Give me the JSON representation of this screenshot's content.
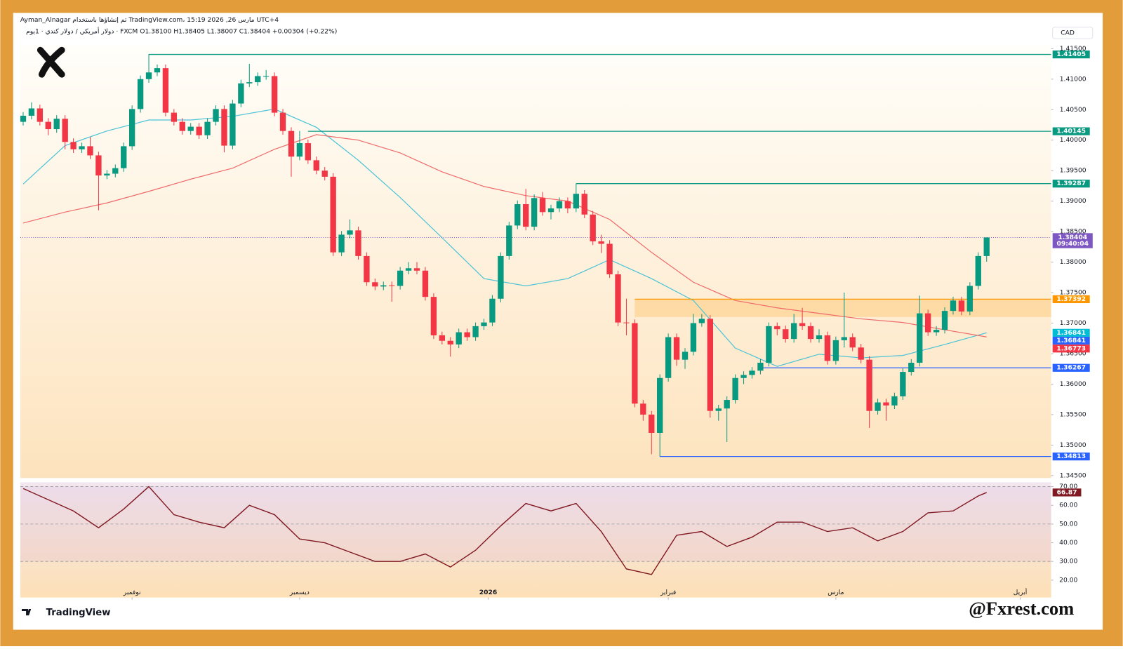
{
  "header": {
    "line1": "Ayman_Alnagar تم إنشاؤها باستخدام TradingView.com، مارس 26, 2026 15:19 UTC+4",
    "line2": "دولار أمريكي / دولار كندي · 1يوم · FXCM  O1.38100  H1.38405  L1.38007  C1.38404  +0.00304 (+0.22%)"
  },
  "chart_data": {
    "type": "candlestick",
    "currency": "CAD",
    "up_color": "#089981",
    "down_color": "#f23645",
    "candles": [
      [
        1.403,
        1.4046,
        1.4024,
        1.404
      ],
      [
        1.404,
        1.4062,
        1.4034,
        1.4052
      ],
      [
        1.4052,
        1.4058,
        1.4024,
        1.403
      ],
      [
        1.403,
        1.4036,
        1.4008,
        1.4018
      ],
      [
        1.4018,
        1.4041,
        1.4012,
        1.4035
      ],
      [
        1.4035,
        1.4041,
        1.3985,
        1.3997
      ],
      [
        1.3997,
        1.4003,
        1.3979,
        1.3985
      ],
      [
        1.3985,
        1.3996,
        1.3979,
        1.399
      ],
      [
        1.399,
        1.4005,
        1.3969,
        1.3975
      ],
      [
        1.3975,
        1.3981,
        1.3885,
        1.3942
      ],
      [
        1.3942,
        1.3951,
        1.3936,
        1.3945
      ],
      [
        1.3945,
        1.396,
        1.3939,
        1.3954
      ],
      [
        1.3954,
        1.3996,
        1.3948,
        1.399
      ],
      [
        1.399,
        1.4057,
        1.3984,
        1.4051
      ],
      [
        1.4051,
        1.4106,
        1.4045,
        1.41
      ],
      [
        1.41,
        1.4141,
        1.4094,
        1.4111
      ],
      [
        1.4111,
        1.4124,
        1.4105,
        1.4118
      ],
      [
        1.4118,
        1.4124,
        1.4039,
        1.4045
      ],
      [
        1.4045,
        1.4051,
        1.4024,
        1.403
      ],
      [
        1.403,
        1.4036,
        1.4009,
        1.4015
      ],
      [
        1.4015,
        1.4028,
        1.4009,
        1.4022
      ],
      [
        1.4022,
        1.4028,
        1.4002,
        1.4008
      ],
      [
        1.4008,
        1.4036,
        1.4002,
        1.403
      ],
      [
        1.403,
        1.4057,
        1.4024,
        1.4051
      ],
      [
        1.4051,
        1.4057,
        1.398,
        1.3991
      ],
      [
        1.3991,
        1.4066,
        1.3985,
        1.406
      ],
      [
        1.406,
        1.4099,
        1.4054,
        1.4093
      ],
      [
        1.4093,
        1.4125,
        1.4087,
        1.4095
      ],
      [
        1.4095,
        1.4111,
        1.4089,
        1.4105
      ],
      [
        1.4105,
        1.4115,
        1.4099,
        1.4105
      ],
      [
        1.4105,
        1.4111,
        1.4039,
        1.4045
      ],
      [
        1.4045,
        1.4051,
        1.4009,
        1.4015
      ],
      [
        1.4015,
        1.4021,
        1.394,
        1.3973
      ],
      [
        1.3973,
        1.4015,
        1.3967,
        1.3995
      ],
      [
        1.3995,
        1.4001,
        1.3961,
        1.3967
      ],
      [
        1.3967,
        1.3973,
        1.3944,
        1.395
      ],
      [
        1.395,
        1.3956,
        1.3934,
        1.394
      ],
      [
        1.394,
        1.3946,
        1.381,
        1.3816
      ],
      [
        1.3816,
        1.3851,
        1.381,
        1.3845
      ],
      [
        1.3845,
        1.387,
        1.3839,
        1.3852
      ],
      [
        1.3852,
        1.3858,
        1.3804,
        1.381
      ],
      [
        1.381,
        1.3816,
        1.3761,
        1.3767
      ],
      [
        1.3767,
        1.3773,
        1.3754,
        1.376
      ],
      [
        1.376,
        1.3768,
        1.3754,
        1.3762
      ],
      [
        1.3762,
        1.3768,
        1.3735,
        1.3761
      ],
      [
        1.3761,
        1.3792,
        1.3755,
        1.3786
      ],
      [
        1.3786,
        1.38,
        1.378,
        1.379
      ],
      [
        1.379,
        1.38,
        1.378,
        1.3786
      ],
      [
        1.3786,
        1.3792,
        1.3737,
        1.3743
      ],
      [
        1.3743,
        1.3749,
        1.3674,
        1.368
      ],
      [
        1.368,
        1.3686,
        1.3665,
        1.3671
      ],
      [
        1.3671,
        1.3677,
        1.3645,
        1.3665
      ],
      [
        1.3665,
        1.3691,
        1.3659,
        1.3685
      ],
      [
        1.3685,
        1.3691,
        1.3671,
        1.3677
      ],
      [
        1.3677,
        1.3701,
        1.3671,
        1.3695
      ],
      [
        1.3695,
        1.3707,
        1.3689,
        1.3701
      ],
      [
        1.3701,
        1.3746,
        1.3695,
        1.374
      ],
      [
        1.374,
        1.3816,
        1.3734,
        1.381
      ],
      [
        1.381,
        1.3866,
        1.3804,
        1.386
      ],
      [
        1.386,
        1.3901,
        1.3854,
        1.3895
      ],
      [
        1.3895,
        1.392,
        1.3852,
        1.3858
      ],
      [
        1.3858,
        1.3911,
        1.3852,
        1.3905
      ],
      [
        1.3905,
        1.3915,
        1.3876,
        1.3882
      ],
      [
        1.3882,
        1.3894,
        1.387,
        1.3888
      ],
      [
        1.3888,
        1.3906,
        1.3882,
        1.39
      ],
      [
        1.39,
        1.3906,
        1.388,
        1.3888
      ],
      [
        1.3888,
        1.3929,
        1.3882,
        1.3912
      ],
      [
        1.3912,
        1.3918,
        1.3872,
        1.3878
      ],
      [
        1.3878,
        1.3884,
        1.3828,
        1.3834
      ],
      [
        1.3834,
        1.3845,
        1.3815,
        1.383
      ],
      [
        1.383,
        1.3836,
        1.3774,
        1.378
      ],
      [
        1.378,
        1.3786,
        1.3695,
        1.3701
      ],
      [
        1.3701,
        1.374,
        1.368,
        1.37
      ],
      [
        1.37,
        1.3706,
        1.3562,
        1.3568
      ],
      [
        1.3568,
        1.3574,
        1.354,
        1.355
      ],
      [
        1.355,
        1.3556,
        1.3485,
        1.352
      ],
      [
        1.352,
        1.3616,
        1.3481,
        1.361
      ],
      [
        1.361,
        1.3683,
        1.3604,
        1.3677
      ],
      [
        1.3677,
        1.3683,
        1.363,
        1.364
      ],
      [
        1.364,
        1.3659,
        1.3625,
        1.3653
      ],
      [
        1.3653,
        1.3715,
        1.3647,
        1.37
      ],
      [
        1.37,
        1.3715,
        1.3694,
        1.3707
      ],
      [
        1.3707,
        1.3713,
        1.3545,
        1.3556
      ],
      [
        1.3556,
        1.3566,
        1.354,
        1.356
      ],
      [
        1.356,
        1.358,
        1.3505,
        1.3574
      ],
      [
        1.3574,
        1.3616,
        1.3568,
        1.361
      ],
      [
        1.361,
        1.3621,
        1.36,
        1.3615
      ],
      [
        1.3615,
        1.3628,
        1.3609,
        1.3622
      ],
      [
        1.3622,
        1.3641,
        1.3616,
        1.3635
      ],
      [
        1.3635,
        1.3701,
        1.3629,
        1.3695
      ],
      [
        1.3695,
        1.3701,
        1.368,
        1.369
      ],
      [
        1.369,
        1.3696,
        1.3668,
        1.3674
      ],
      [
        1.3674,
        1.3715,
        1.3668,
        1.37
      ],
      [
        1.37,
        1.3725,
        1.3689,
        1.3695
      ],
      [
        1.3695,
        1.3701,
        1.3668,
        1.3674
      ],
      [
        1.3674,
        1.369,
        1.3668,
        1.368
      ],
      [
        1.368,
        1.3686,
        1.3632,
        1.3638
      ],
      [
        1.3638,
        1.3678,
        1.3632,
        1.3672
      ],
      [
        1.3672,
        1.375,
        1.366,
        1.3677
      ],
      [
        1.3677,
        1.3683,
        1.3654,
        1.366
      ],
      [
        1.366,
        1.3666,
        1.3634,
        1.364
      ],
      [
        1.364,
        1.3646,
        1.3528,
        1.3556
      ],
      [
        1.3556,
        1.3576,
        1.355,
        1.357
      ],
      [
        1.357,
        1.3576,
        1.354,
        1.3565
      ],
      [
        1.3565,
        1.3586,
        1.3559,
        1.358
      ],
      [
        1.358,
        1.3626,
        1.3574,
        1.362
      ],
      [
        1.362,
        1.3641,
        1.3614,
        1.3635
      ],
      [
        1.3635,
        1.3745,
        1.3629,
        1.3716
      ],
      [
        1.3716,
        1.3722,
        1.3679,
        1.3685
      ],
      [
        1.3685,
        1.3695,
        1.3679,
        1.3689
      ],
      [
        1.3689,
        1.3726,
        1.3683,
        1.372
      ],
      [
        1.372,
        1.3743,
        1.3714,
        1.3737
      ],
      [
        1.3737,
        1.3743,
        1.3713,
        1.3719
      ],
      [
        1.3719,
        1.3767,
        1.3713,
        1.3761
      ],
      [
        1.3761,
        1.3816,
        1.3755,
        1.381
      ],
      [
        1.381,
        1.38405,
        1.38007,
        1.38404
      ]
    ],
    "xlim": [
      -0.34,
      122.7
    ],
    "xticks": [
      {
        "value": 13,
        "label": "نوفمبر"
      },
      {
        "value": 33,
        "label": "ديسمبر"
      },
      {
        "value": 55.5,
        "label": "2026"
      },
      {
        "value": 77,
        "label": "فبراير"
      },
      {
        "value": 97,
        "label": "مارس"
      },
      {
        "value": 119,
        "label": "أبريل"
      }
    ],
    "ylim": [
      1.3446,
      1.4157
    ],
    "yticks": [
      {
        "value": 1.345,
        "label": "1.34500"
      },
      {
        "value": 1.35,
        "label": "1.35000"
      },
      {
        "value": 1.355,
        "label": "1.35500"
      },
      {
        "value": 1.36,
        "label": "1.36000"
      },
      {
        "value": 1.365,
        "label": "1.36500"
      },
      {
        "value": 1.37,
        "label": "1.37000"
      },
      {
        "value": 1.375,
        "label": "1.37500"
      },
      {
        "value": 1.38,
        "label": "1.38000"
      },
      {
        "value": 1.385,
        "label": "1.38500"
      },
      {
        "value": 1.39,
        "label": "1.39000"
      },
      {
        "value": 1.395,
        "label": "1.39500"
      },
      {
        "value": 1.4,
        "label": "1.40000"
      },
      {
        "value": 1.405,
        "label": "1.40500"
      },
      {
        "value": 1.41,
        "label": "1.41000"
      },
      {
        "value": 1.415,
        "label": "1.41500"
      }
    ],
    "moving_averages": [
      {
        "color": "#4dc3d6",
        "x": [
          0,
          5,
          10,
          15,
          20,
          25,
          30,
          35,
          40,
          45,
          50,
          55,
          60,
          65,
          70,
          75,
          80,
          85,
          90,
          95,
          100,
          105,
          110,
          115
        ],
        "values": [
          1.3928,
          1.3991,
          1.4015,
          1.4033,
          1.4033,
          1.4039,
          1.4051,
          1.4021,
          1.3967,
          1.3906,
          1.384,
          1.3773,
          1.3761,
          1.3773,
          1.3804,
          1.3773,
          1.3737,
          1.3659,
          1.3629,
          1.3649,
          1.3643,
          1.3647,
          1.3665,
          1.36841
        ]
      },
      {
        "color": "#ef6b6b",
        "x": [
          0,
          5,
          10,
          15,
          20,
          25,
          30,
          35,
          40,
          45,
          50,
          55,
          60,
          65,
          70,
          75,
          80,
          85,
          90,
          95,
          100,
          105,
          110,
          115
        ],
        "values": [
          1.3864,
          1.3882,
          1.3897,
          1.3916,
          1.3936,
          1.3954,
          1.3985,
          1.4009,
          1.4,
          1.3979,
          1.3948,
          1.3924,
          1.3909,
          1.39,
          1.387,
          1.3816,
          1.3767,
          1.3737,
          1.3725,
          1.3716,
          1.3707,
          1.3701,
          1.3689,
          1.36773
        ]
      }
    ],
    "zone": {
      "low": 1.371,
      "high": 1.37392,
      "start": 73,
      "color": "#ffb74d"
    },
    "levels": [
      {
        "value": 1.41405,
        "color": "#089981",
        "start": 15
      },
      {
        "value": 1.40145,
        "color": "#089981",
        "start": 34
      },
      {
        "value": 1.39287,
        "color": "#089981",
        "start": 66
      },
      {
        "value": 1.37392,
        "color": "#ff9800",
        "start": 73
      },
      {
        "value": 1.36841,
        "color": "#00bcd4"
      },
      {
        "value": 1.36841,
        "color": "#2962ff"
      },
      {
        "value": 1.36773,
        "color": "#f23645"
      },
      {
        "value": 1.36267,
        "color": "#2962ff",
        "start": 88
      },
      {
        "value": 1.34813,
        "color": "#2962ff",
        "start": 76
      }
    ],
    "current": {
      "value": 1.38404,
      "countdown": "09:40:04",
      "color": "#7e57c2"
    },
    "rsi": {
      "color": "#801922",
      "ylim": [
        10.7,
        72.3
      ],
      "guide_lines": [
        30,
        50,
        70
      ],
      "yticks": [
        {
          "value": 20,
          "label": "20.00"
        },
        {
          "value": 30,
          "label": "30.00"
        },
        {
          "value": 40,
          "label": "40.00"
        },
        {
          "value": 50,
          "label": "50.00"
        },
        {
          "value": 60,
          "label": "60.00"
        },
        {
          "value": 70,
          "label": "70.00"
        }
      ],
      "x": [
        0,
        3,
        6,
        9,
        12,
        15,
        18,
        21,
        24,
        27,
        30,
        33,
        36,
        39,
        42,
        45,
        48,
        51,
        54,
        57,
        60,
        63,
        66,
        69,
        72,
        75,
        78,
        81,
        84,
        87,
        90,
        93,
        96,
        99,
        102,
        105,
        108,
        111,
        114,
        115
      ],
      "values": [
        69,
        63,
        57,
        48,
        58,
        70,
        55,
        51,
        48,
        60,
        55,
        42,
        40,
        35,
        30,
        30,
        34,
        27,
        36,
        49,
        61,
        57,
        61,
        46,
        26,
        23,
        44,
        46,
        38,
        43,
        51,
        51,
        46,
        48,
        41,
        46,
        56,
        57,
        65,
        66.87
      ]
    }
  },
  "footer": {
    "brand": "TradingView",
    "watermark": "@Fxrest.com"
  }
}
